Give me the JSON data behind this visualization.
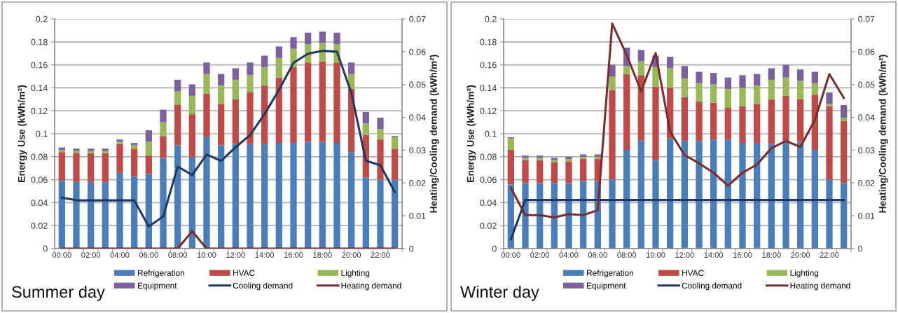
{
  "chart_data": [
    {
      "type": "bar",
      "title": "Summer day",
      "ylabel": "Energy Use (kWh/m²)",
      "y2label": "Heating/Cooling demand (kWh/m²)",
      "categories": [
        "00:00",
        null,
        "02:00",
        null,
        "04:00",
        null,
        "06:00",
        null,
        "08:00",
        null,
        "10:00",
        null,
        "12:00",
        null,
        "14:00",
        null,
        "16:00",
        null,
        "18:00",
        null,
        "20:00",
        null,
        "22:00",
        null
      ],
      "stacked": true,
      "grid": "y",
      "legend": "bottom",
      "ylim": [
        0,
        0.2
      ],
      "yticks": [
        0,
        0.02,
        0.04,
        0.06,
        0.08,
        0.1,
        0.12,
        0.14,
        0.16,
        0.18,
        0.2
      ],
      "y2lim": [
        0,
        0.07
      ],
      "y2ticks": [
        0,
        0.01,
        0.02,
        0.03,
        0.04,
        0.05,
        0.06,
        0.07
      ],
      "series": [
        {
          "name": "Refrigeration",
          "color": "#4a7ebb",
          "values": [
            0.059,
            0.058,
            0.058,
            0.058,
            0.066,
            0.063,
            0.065,
            0.079,
            0.09,
            0.08,
            0.097,
            0.09,
            0.091,
            0.091,
            0.091,
            0.092,
            0.092,
            0.093,
            0.093,
            0.092,
            0.084,
            0.062,
            0.06,
            0.06
          ]
        },
        {
          "name": "HVAC",
          "color": "#be4b48",
          "values": [
            0.025,
            0.025,
            0.025,
            0.025,
            0.025,
            0.024,
            0.016,
            0.019,
            0.035,
            0.037,
            0.038,
            0.036,
            0.039,
            0.045,
            0.051,
            0.057,
            0.066,
            0.069,
            0.07,
            0.07,
            0.055,
            0.037,
            0.035,
            0.027
          ]
        },
        {
          "name": "Lighting",
          "color": "#98b954",
          "values": [
            0.002,
            0.002,
            0.002,
            0.002,
            0.002,
            0.003,
            0.012,
            0.012,
            0.012,
            0.016,
            0.017,
            0.016,
            0.017,
            0.015,
            0.016,
            0.017,
            0.016,
            0.016,
            0.016,
            0.016,
            0.013,
            0.01,
            0.009,
            0.01
          ]
        },
        {
          "name": "Equipment",
          "color": "#7d60a0",
          "values": [
            0.002,
            0.002,
            0.002,
            0.002,
            0.002,
            0.002,
            0.01,
            0.011,
            0.01,
            0.01,
            0.01,
            0.01,
            0.01,
            0.011,
            0.01,
            0.01,
            0.01,
            0.01,
            0.01,
            0.01,
            0.01,
            0.01,
            0.01,
            0.001
          ]
        },
        {
          "name": "Cooling demand",
          "type": "line",
          "axis": "y2",
          "color": "#1f3864",
          "values": [
            0.0155,
            0.0147,
            0.0147,
            0.0147,
            0.0147,
            0.0147,
            0.0067,
            0.0098,
            0.025,
            0.0224,
            0.0287,
            0.0267,
            0.0309,
            0.0346,
            0.041,
            0.0484,
            0.0566,
            0.0594,
            0.0603,
            0.06,
            0.0474,
            0.0268,
            0.0254,
            0.0172
          ]
        },
        {
          "name": "Heating demand",
          "type": "line",
          "axis": "y2",
          "color": "#7b2c2c",
          "values": [
            0,
            0,
            0,
            0,
            0,
            0,
            0,
            0,
            0,
            0.0053,
            0,
            0,
            0,
            0,
            0,
            0,
            0,
            0,
            0,
            0,
            0,
            0,
            0,
            0
          ]
        }
      ]
    },
    {
      "type": "bar",
      "title": "Winter day",
      "ylabel": "Energy Use (kWh/m²)",
      "y2label": "Heating/Cooling demand (kWh/m²)",
      "categories": [
        "00:00",
        null,
        "02:00",
        null,
        "04:00",
        null,
        "06:00",
        null,
        "08:00",
        null,
        "10:00",
        null,
        "12:00",
        null,
        "14:00",
        null,
        "16:00",
        null,
        "18:00",
        null,
        "20:00",
        null,
        "22:00",
        null
      ],
      "stacked": true,
      "grid": "y",
      "legend": "bottom",
      "ylim": [
        0,
        0.2
      ],
      "yticks": [
        0,
        0.02,
        0.04,
        0.06,
        0.08,
        0.1,
        0.12,
        0.14,
        0.16,
        0.18,
        0.2
      ],
      "y2lim": [
        0,
        0.07
      ],
      "y2ticks": [
        0,
        0.01,
        0.02,
        0.03,
        0.04,
        0.05,
        0.06,
        0.07
      ],
      "series": [
        {
          "name": "Refrigeration",
          "color": "#4a7ebb",
          "values": [
            0.056,
            0.057,
            0.057,
            0.057,
            0.057,
            0.059,
            0.059,
            0.06,
            0.086,
            0.094,
            0.077,
            0.096,
            0.094,
            0.094,
            0.095,
            0.095,
            0.092,
            0.092,
            0.091,
            0.094,
            0.093,
            0.086,
            0.06,
            0.057
          ]
        },
        {
          "name": "HVAC",
          "color": "#be4b48",
          "values": [
            0.03,
            0.02,
            0.02,
            0.018,
            0.019,
            0.019,
            0.019,
            0.078,
            0.066,
            0.057,
            0.064,
            0.044,
            0.038,
            0.034,
            0.032,
            0.028,
            0.032,
            0.034,
            0.039,
            0.039,
            0.037,
            0.048,
            0.064,
            0.054
          ]
        },
        {
          "name": "Lighting",
          "color": "#98b954",
          "values": [
            0.01,
            0.002,
            0.002,
            0.002,
            0.002,
            0.002,
            0.002,
            0.012,
            0.007,
            0.012,
            0.017,
            0.017,
            0.016,
            0.016,
            0.016,
            0.016,
            0.016,
            0.016,
            0.017,
            0.016,
            0.016,
            0.01,
            0.002,
            0.003
          ]
        },
        {
          "name": "Equipment",
          "color": "#7d60a0",
          "values": [
            0.001,
            0.002,
            0.002,
            0.002,
            0.002,
            0.002,
            0.002,
            0.01,
            0.016,
            0.01,
            0.01,
            0.01,
            0.011,
            0.01,
            0.01,
            0.01,
            0.011,
            0.01,
            0.01,
            0.011,
            0.01,
            0.01,
            0.01,
            0.011
          ]
        },
        {
          "name": "Cooling demand",
          "type": "line",
          "axis": "y2",
          "color": "#1f3864",
          "values": [
            0.0028,
            0.0148,
            0.0148,
            0.0148,
            0.0148,
            0.0148,
            0.0148,
            0.0148,
            0.0148,
            0.0148,
            0.0148,
            0.0148,
            0.0148,
            0.0148,
            0.0148,
            0.0148,
            0.0148,
            0.0148,
            0.0148,
            0.0148,
            0.0148,
            0.0148,
            0.0148,
            0.0148
          ]
        },
        {
          "name": "Heating demand",
          "type": "line",
          "axis": "y2",
          "color": "#7b2c2c",
          "values": [
            0.0185,
            0.0102,
            0.0102,
            0.0095,
            0.0105,
            0.0102,
            0.0117,
            0.0686,
            0.059,
            0.0479,
            0.0596,
            0.0356,
            0.0285,
            0.026,
            0.0231,
            0.0192,
            0.0231,
            0.0256,
            0.0306,
            0.0328,
            0.031,
            0.0392,
            0.0532,
            0.0459
          ]
        }
      ]
    }
  ]
}
